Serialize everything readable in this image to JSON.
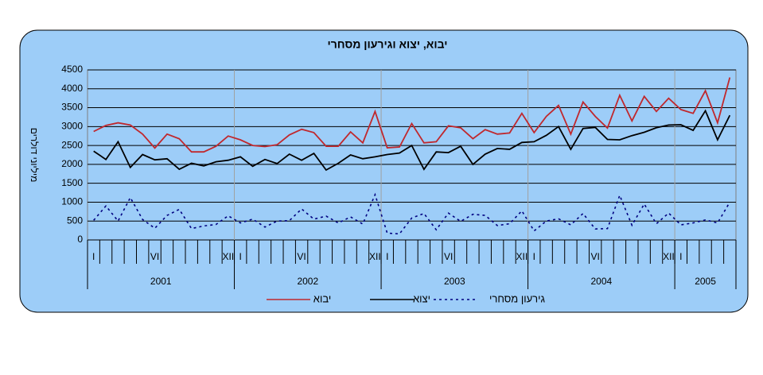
{
  "chart_data": {
    "type": "line",
    "title": "יבוא,    יצוא וגירעון מסחרי",
    "y_label": "מיליוני דולרים",
    "categories": [
      "I",
      null,
      null,
      null,
      null,
      "VI",
      null,
      null,
      null,
      null,
      null,
      "XII",
      "I",
      null,
      null,
      null,
      null,
      "VI",
      null,
      null,
      null,
      null,
      null,
      "XII",
      "I",
      null,
      null,
      null,
      null,
      "VI",
      null,
      null,
      null,
      null,
      null,
      "XII",
      "I",
      null,
      null,
      null,
      null,
      "VI",
      null,
      null,
      null,
      null,
      null,
      "XII",
      "I",
      null,
      null,
      null,
      null
    ],
    "groups": [
      "2001",
      "2002",
      "2003",
      "2004",
      "2005"
    ],
    "ylim": [
      0,
      4500
    ],
    "yticks": [
      0,
      500,
      1000,
      1500,
      2000,
      2500,
      3000,
      3500,
      4000,
      4500
    ],
    "grid": true,
    "legend": "bottom",
    "series": [
      {
        "name": "יבוא",
        "color": "#c0282d",
        "dash": false,
        "values": [
          2870,
          3030,
          3100,
          3040,
          2800,
          2430,
          2800,
          2680,
          2330,
          2330,
          2480,
          2750,
          2650,
          2500,
          2470,
          2520,
          2780,
          2930,
          2840,
          2480,
          2480,
          2860,
          2570,
          3400,
          2440,
          2460,
          3080,
          2570,
          2600,
          3020,
          2970,
          2680,
          2920,
          2800,
          2830,
          3350,
          2840,
          3270,
          3560,
          2800,
          3650,
          3270,
          2960,
          3830,
          3150,
          3800,
          3400,
          3750,
          3450,
          3350,
          3950,
          3100,
          4300
        ]
      },
      {
        "name": "יצוא",
        "color": "#000000",
        "dash": false,
        "values": [
          2350,
          2130,
          2600,
          1920,
          2260,
          2120,
          2150,
          1870,
          2030,
          1960,
          2070,
          2110,
          2200,
          1950,
          2130,
          2020,
          2270,
          2110,
          2290,
          1850,
          2030,
          2250,
          2150,
          2200,
          2260,
          2300,
          2500,
          1870,
          2330,
          2310,
          2480,
          2000,
          2270,
          2420,
          2400,
          2580,
          2600,
          2770,
          3000,
          2400,
          2950,
          2980,
          2660,
          2650,
          2760,
          2850,
          2970,
          3040,
          3050,
          2900,
          3420,
          2650,
          3300
        ]
      },
      {
        "name": "גירעון מסחרי",
        "color": "#000080",
        "dash": true,
        "values": [
          520,
          900,
          500,
          1120,
          540,
          310,
          650,
          810,
          300,
          370,
          410,
          640,
          450,
          550,
          340,
          500,
          510,
          820,
          550,
          630,
          450,
          610,
          420,
          1200,
          180,
          160,
          580,
          700,
          270,
          710,
          490,
          680,
          650,
          380,
          430,
          770,
          240,
          500,
          560,
          400,
          700,
          290,
          300,
          1180,
          390,
          950,
          430,
          710,
          400,
          450,
          530,
          450,
          1000
        ]
      }
    ]
  }
}
